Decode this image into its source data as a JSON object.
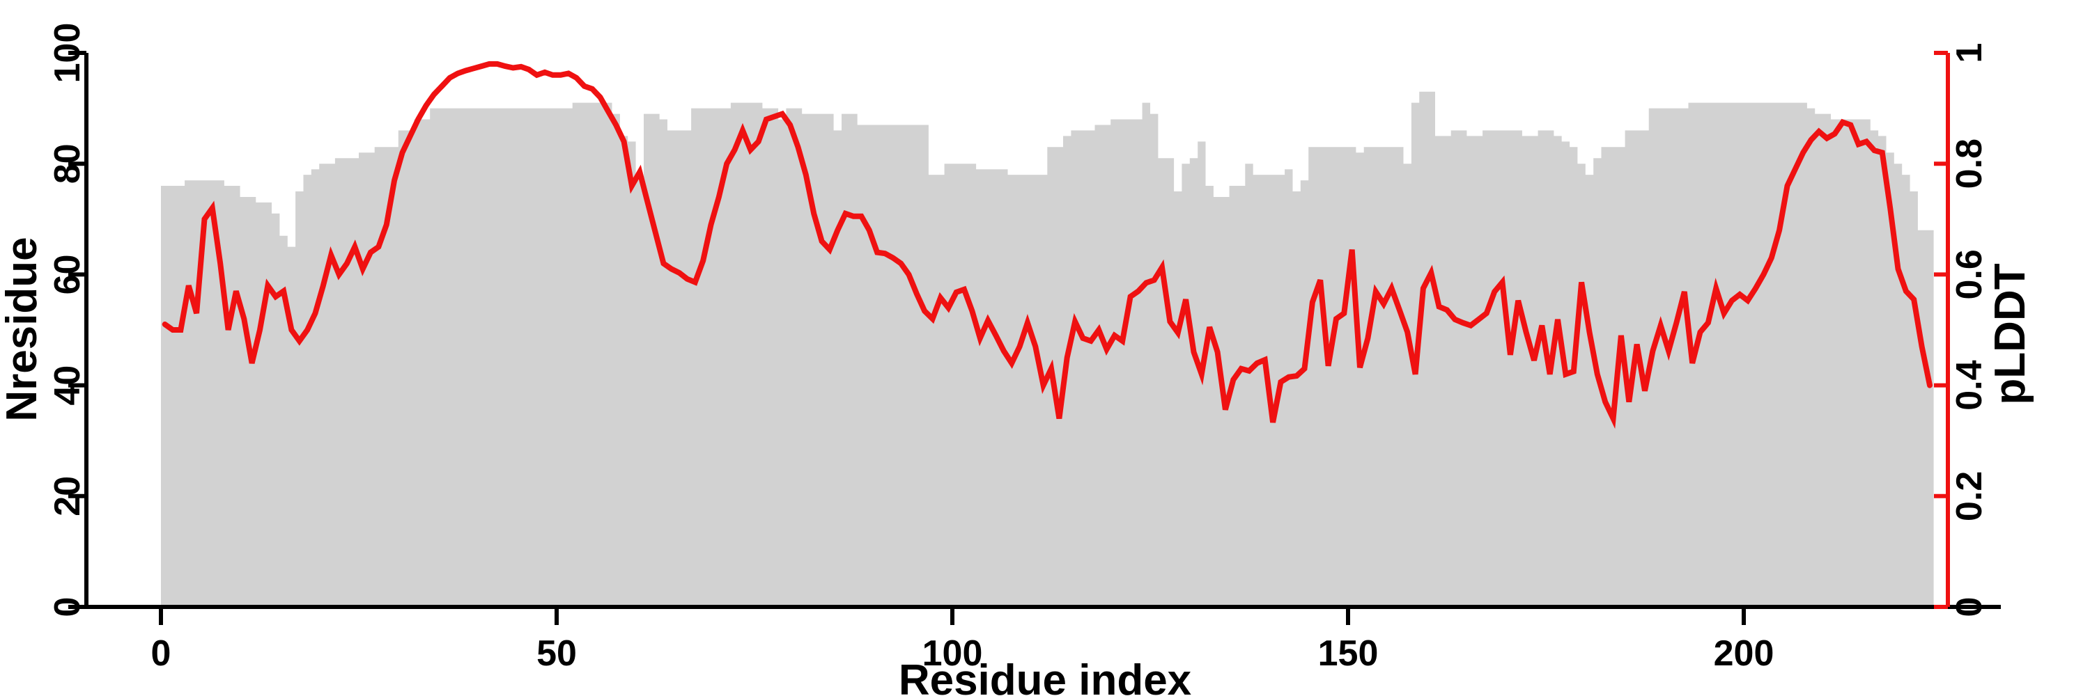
{
  "figure": {
    "background": "#ffffff",
    "colors": {
      "area_fill": "#d2d2d2",
      "line_red": "#ef1111",
      "axis_black": "#000000"
    },
    "left_axis": {
      "title": "Nresidue",
      "tick_labels": [
        "0",
        "20",
        "40",
        "60",
        "80",
        "100"
      ],
      "tick_values": [
        0,
        20,
        40,
        60,
        80,
        100
      ],
      "range": [
        0,
        100
      ]
    },
    "bottom_axis": {
      "title": "Residue index",
      "tick_labels": [
        "0",
        "50",
        "100",
        "150",
        "200"
      ],
      "tick_values": [
        0,
        50,
        100,
        150,
        200
      ]
    },
    "right_axis": {
      "title": "pLDDT",
      "tick_labels": [
        "0",
        "0.2",
        "0.4",
        "0.6",
        "0.8",
        "1"
      ],
      "tick_values": [
        0,
        0.2,
        0.4,
        0.6,
        0.8,
        1
      ],
      "range": [
        0,
        1
      ],
      "color": "#ef1111"
    }
  },
  "chart_data": {
    "type": "area",
    "subtype": "step-area with overlaid line, dual y-axes",
    "title": "",
    "xlabel": "Residue index",
    "x_start": 0,
    "x_end": 223,
    "x_ticks": [
      0,
      50,
      100,
      150,
      200
    ],
    "left_ylabel": "Nresidue",
    "left_ylim": [
      0,
      100
    ],
    "right_ylabel": "pLDDT",
    "right_ylim": [
      0,
      1
    ],
    "grid": false,
    "legend_position": "none",
    "series": [
      {
        "name": "Nresidue",
        "type": "step-area",
        "axis": "left",
        "color": "#d2d2d2",
        "values": [
          76,
          76,
          76,
          77,
          77,
          77,
          77,
          77,
          76,
          76,
          74,
          74,
          73,
          73,
          71,
          67,
          65,
          75,
          78,
          79,
          80,
          80,
          81,
          81,
          81,
          82,
          82,
          83,
          83,
          83,
          86,
          86,
          88,
          88,
          90,
          90,
          90,
          90,
          90,
          90,
          90,
          90,
          90,
          90,
          90,
          90,
          90,
          90,
          90,
          90,
          90,
          90,
          91,
          91,
          91,
          91,
          91,
          89,
          85,
          84,
          77,
          89,
          89,
          88,
          86,
          86,
          86,
          90,
          90,
          90,
          90,
          90,
          91,
          91,
          91,
          91,
          90,
          90,
          88,
          90,
          90,
          89,
          89,
          89,
          89,
          86,
          89,
          89,
          87,
          87,
          87,
          87,
          87,
          87,
          87,
          87,
          87,
          78,
          78,
          80,
          80,
          80,
          80,
          79,
          79,
          79,
          79,
          78,
          78,
          78,
          78,
          78,
          83,
          83,
          85,
          86,
          86,
          86,
          87,
          87,
          88,
          88,
          88,
          88,
          91,
          89,
          81,
          81,
          75,
          80,
          81,
          84,
          76,
          74,
          74,
          76,
          76,
          80,
          78,
          78,
          78,
          78,
          79,
          75,
          77,
          83,
          83,
          83,
          83,
          83,
          83,
          82,
          83,
          83,
          83,
          83,
          83,
          80,
          91,
          93,
          93,
          85,
          85,
          86,
          86,
          85,
          85,
          86,
          86,
          86,
          86,
          86,
          85,
          85,
          86,
          86,
          85,
          84,
          83,
          80,
          78,
          81,
          83,
          83,
          83,
          86,
          86,
          86,
          90,
          90,
          90,
          90,
          90,
          91,
          91,
          91,
          91,
          91,
          91,
          91,
          91,
          91,
          91,
          91,
          91,
          91,
          91,
          91,
          90,
          89,
          89,
          88,
          88,
          88,
          88,
          88,
          86,
          85,
          82,
          80,
          78,
          75,
          68,
          68
        ]
      },
      {
        "name": "pLDDT",
        "type": "line",
        "axis": "right",
        "color": "#ef1111",
        "values": [
          0.51,
          0.5,
          0.5,
          0.58,
          0.53,
          0.7,
          0.72,
          0.62,
          0.5,
          0.57,
          0.52,
          0.44,
          0.5,
          0.58,
          0.56,
          0.57,
          0.5,
          0.48,
          0.5,
          0.53,
          0.58,
          0.635,
          0.6,
          0.62,
          0.65,
          0.61,
          0.64,
          0.65,
          0.69,
          0.77,
          0.82,
          0.85,
          0.88,
          0.905,
          0.925,
          0.94,
          0.955,
          0.963,
          0.968,
          0.972,
          0.976,
          0.98,
          0.98,
          0.976,
          0.973,
          0.975,
          0.97,
          0.96,
          0.965,
          0.96,
          0.96,
          0.963,
          0.955,
          0.94,
          0.935,
          0.92,
          0.895,
          0.87,
          0.84,
          0.76,
          0.785,
          0.73,
          0.675,
          0.62,
          0.61,
          0.603,
          0.592,
          0.586,
          0.625,
          0.69,
          0.74,
          0.8,
          0.825,
          0.86,
          0.825,
          0.84,
          0.88,
          0.885,
          0.89,
          0.87,
          0.83,
          0.78,
          0.71,
          0.66,
          0.645,
          0.68,
          0.71,
          0.705,
          0.705,
          0.68,
          0.64,
          0.638,
          0.63,
          0.62,
          0.6,
          0.565,
          0.534,
          0.52,
          0.558,
          0.54,
          0.568,
          0.573,
          0.534,
          0.485,
          0.517,
          0.49,
          0.462,
          0.44,
          0.47,
          0.513,
          0.47,
          0.4,
          0.43,
          0.34,
          0.45,
          0.515,
          0.485,
          0.48,
          0.5,
          0.465,
          0.49,
          0.48,
          0.56,
          0.57,
          0.585,
          0.59,
          0.613,
          0.515,
          0.495,
          0.555,
          0.46,
          0.42,
          0.505,
          0.46,
          0.356,
          0.41,
          0.43,
          0.426,
          0.44,
          0.446,
          0.333,
          0.406,
          0.415,
          0.417,
          0.43,
          0.55,
          0.59,
          0.435,
          0.52,
          0.53,
          0.645,
          0.432,
          0.485,
          0.569,
          0.547,
          0.575,
          0.536,
          0.496,
          0.42,
          0.575,
          0.603,
          0.542,
          0.536,
          0.519,
          0.513,
          0.508,
          0.519,
          0.53,
          0.569,
          0.586,
          0.455,
          0.553,
          0.496,
          0.445,
          0.508,
          0.42,
          0.519,
          0.42,
          0.425,
          0.586,
          0.496,
          0.42,
          0.37,
          0.34,
          0.49,
          0.37,
          0.474,
          0.39,
          0.462,
          0.508,
          0.462,
          0.513,
          0.569,
          0.44,
          0.496,
          0.513,
          0.575,
          0.53,
          0.553,
          0.564,
          0.553,
          0.575,
          0.6,
          0.63,
          0.68,
          0.76,
          0.79,
          0.82,
          0.843,
          0.858,
          0.846,
          0.854,
          0.875,
          0.87,
          0.835,
          0.84,
          0.824,
          0.82,
          0.72,
          0.61,
          0.57,
          0.555,
          0.47,
          0.4
        ]
      }
    ]
  }
}
